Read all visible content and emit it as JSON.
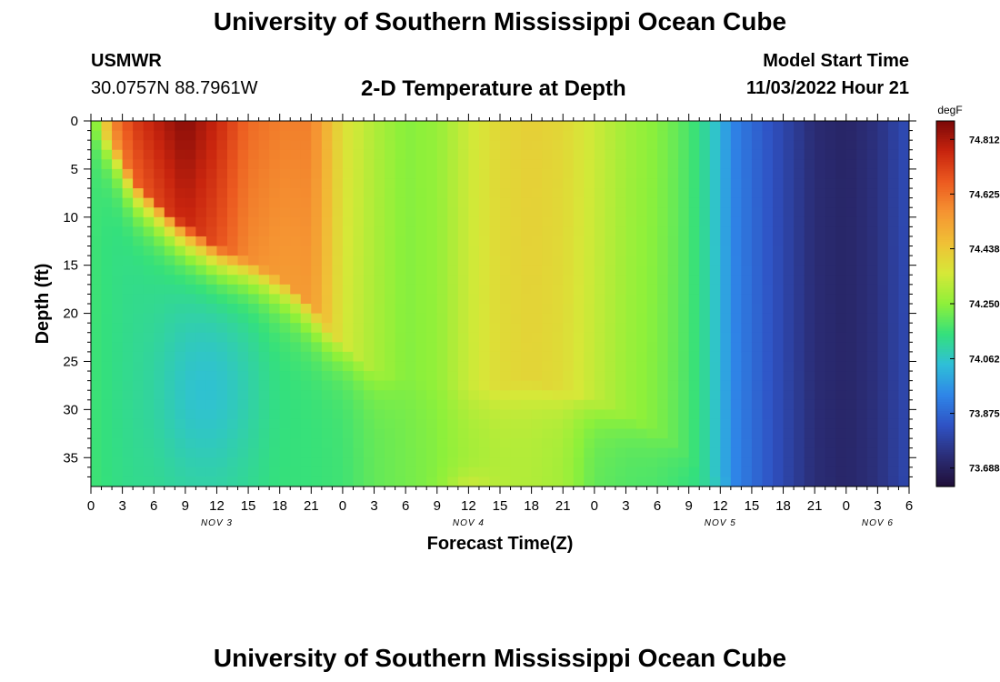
{
  "page": {
    "title": "University of Southern Mississippi Ocean Cube",
    "title_repeat": "University of Southern Mississippi Ocean Cube",
    "station_name": "USMWR",
    "station_coords": "30.0757N  88.7961W",
    "plot_subtitle": "2-D Temperature at Depth",
    "model_start_label": "Model Start Time",
    "model_start_value": "11/03/2022 Hour 21"
  },
  "chart_data": {
    "type": "heatmap",
    "title": "2-D Temperature at Depth",
    "xlabel": "Forecast Time(Z)",
    "ylabel": "Depth (ft)",
    "x_tick_labels": [
      "0",
      "3",
      "6",
      "9",
      "12",
      "15",
      "18",
      "21",
      "0",
      "3",
      "6",
      "9",
      "12",
      "15",
      "18",
      "21",
      "0",
      "3",
      "6",
      "9",
      "12",
      "15",
      "18",
      "21",
      "0",
      "3",
      "6"
    ],
    "date_labels": [
      {
        "label": "NOV 3",
        "hour": 12
      },
      {
        "label": "NOV 4",
        "hour": 36
      },
      {
        "label": "NOV 5",
        "hour": 60
      },
      {
        "label": "NOV 6",
        "hour": 75
      }
    ],
    "xlim_hours": [
      0,
      78
    ],
    "y_tick_labels": [
      "0",
      "5",
      "10",
      "15",
      "20",
      "25",
      "30",
      "35"
    ],
    "ylim_ft": [
      0,
      38
    ],
    "colorbar": {
      "unit": "degF",
      "labels": [
        "74.812",
        "74.625",
        "74.438",
        "74.250",
        "74.062",
        "73.875",
        "73.688"
      ],
      "range": [
        73.625,
        74.875
      ],
      "colors": [
        "#200f38",
        "#2b2e78",
        "#2f52c4",
        "#2f86e8",
        "#2fbfd8",
        "#34e07c",
        "#8ef03a",
        "#d6e838",
        "#f0c036",
        "#f59432",
        "#ec5a20",
        "#c8240e",
        "#7a0808"
      ]
    },
    "temperature_ramps": {
      "hours": [
        0,
        1,
        2,
        4,
        6,
        9,
        12,
        15,
        18,
        21,
        24,
        27,
        30,
        33,
        36,
        39,
        42,
        45,
        48,
        51,
        54,
        56,
        58,
        60,
        61,
        63,
        66,
        69,
        72,
        75,
        78
      ],
      "surface_degF": [
        74.18,
        74.33,
        74.58,
        74.72,
        74.78,
        74.86,
        74.77,
        74.64,
        74.6,
        74.6,
        74.38,
        74.3,
        74.24,
        74.26,
        74.34,
        74.4,
        74.42,
        74.4,
        74.34,
        74.28,
        74.24,
        74.2,
        74.14,
        74.03,
        73.94,
        73.88,
        73.8,
        73.72,
        73.7,
        73.74,
        73.82
      ],
      "deep_degF": [
        74.16,
        74.15,
        74.14,
        74.13,
        74.13,
        74.12,
        74.12,
        74.13,
        74.15,
        74.15,
        74.16,
        74.2,
        74.22,
        74.24,
        74.28,
        74.3,
        74.3,
        74.28,
        74.2,
        74.18,
        74.17,
        74.15,
        74.13,
        74.08,
        74.02,
        73.95,
        73.82,
        73.76,
        73.73,
        73.71,
        73.7
      ]
    }
  }
}
